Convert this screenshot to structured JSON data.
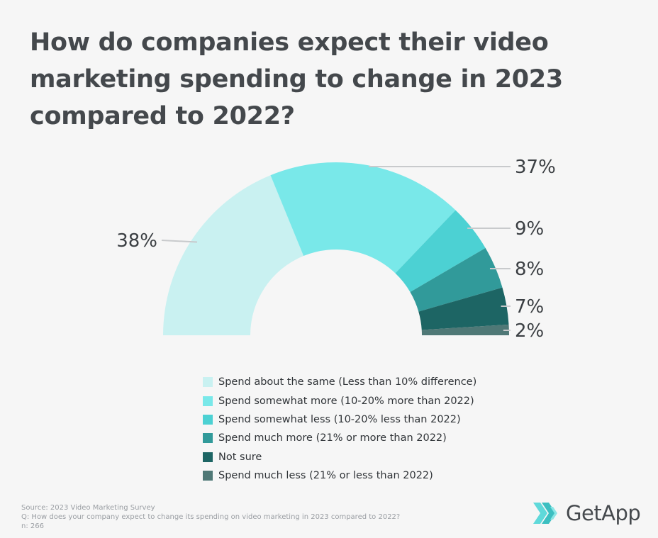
{
  "title": "How do companies expect their video marketing spending to change in 2023 compared to 2022?",
  "chart_data": {
    "type": "pie",
    "subtype": "half-donut",
    "categories": [
      "Spend about the same (Less than 10% difference)",
      "Spend somewhat more (10-20% more than 2022)",
      "Spend somewhat less (10-20% less than 2022)",
      "Spend much more (21% or more than 2022)",
      "Not sure",
      "Spend much less (21% or less than 2022)"
    ],
    "values": [
      38,
      37,
      9,
      8,
      7,
      2
    ],
    "labels": [
      "38%",
      "37%",
      "9%",
      "8%",
      "7%",
      "2%"
    ],
    "colors": [
      "#c9f1f1",
      "#79e8e9",
      "#4cd1d3",
      "#319a9a",
      "#1d6564",
      "#4f7876"
    ],
    "legend_position": "bottom"
  },
  "source": {
    "line1": "Source: 2023 Video Marketing Survey",
    "line2": "Q: How does your company expect to change its spending on video marketing in 2023 compared to 2022?",
    "line3": "n: 266"
  },
  "brand": {
    "name": "GetApp",
    "icon": "getapp-chevrons-icon"
  }
}
